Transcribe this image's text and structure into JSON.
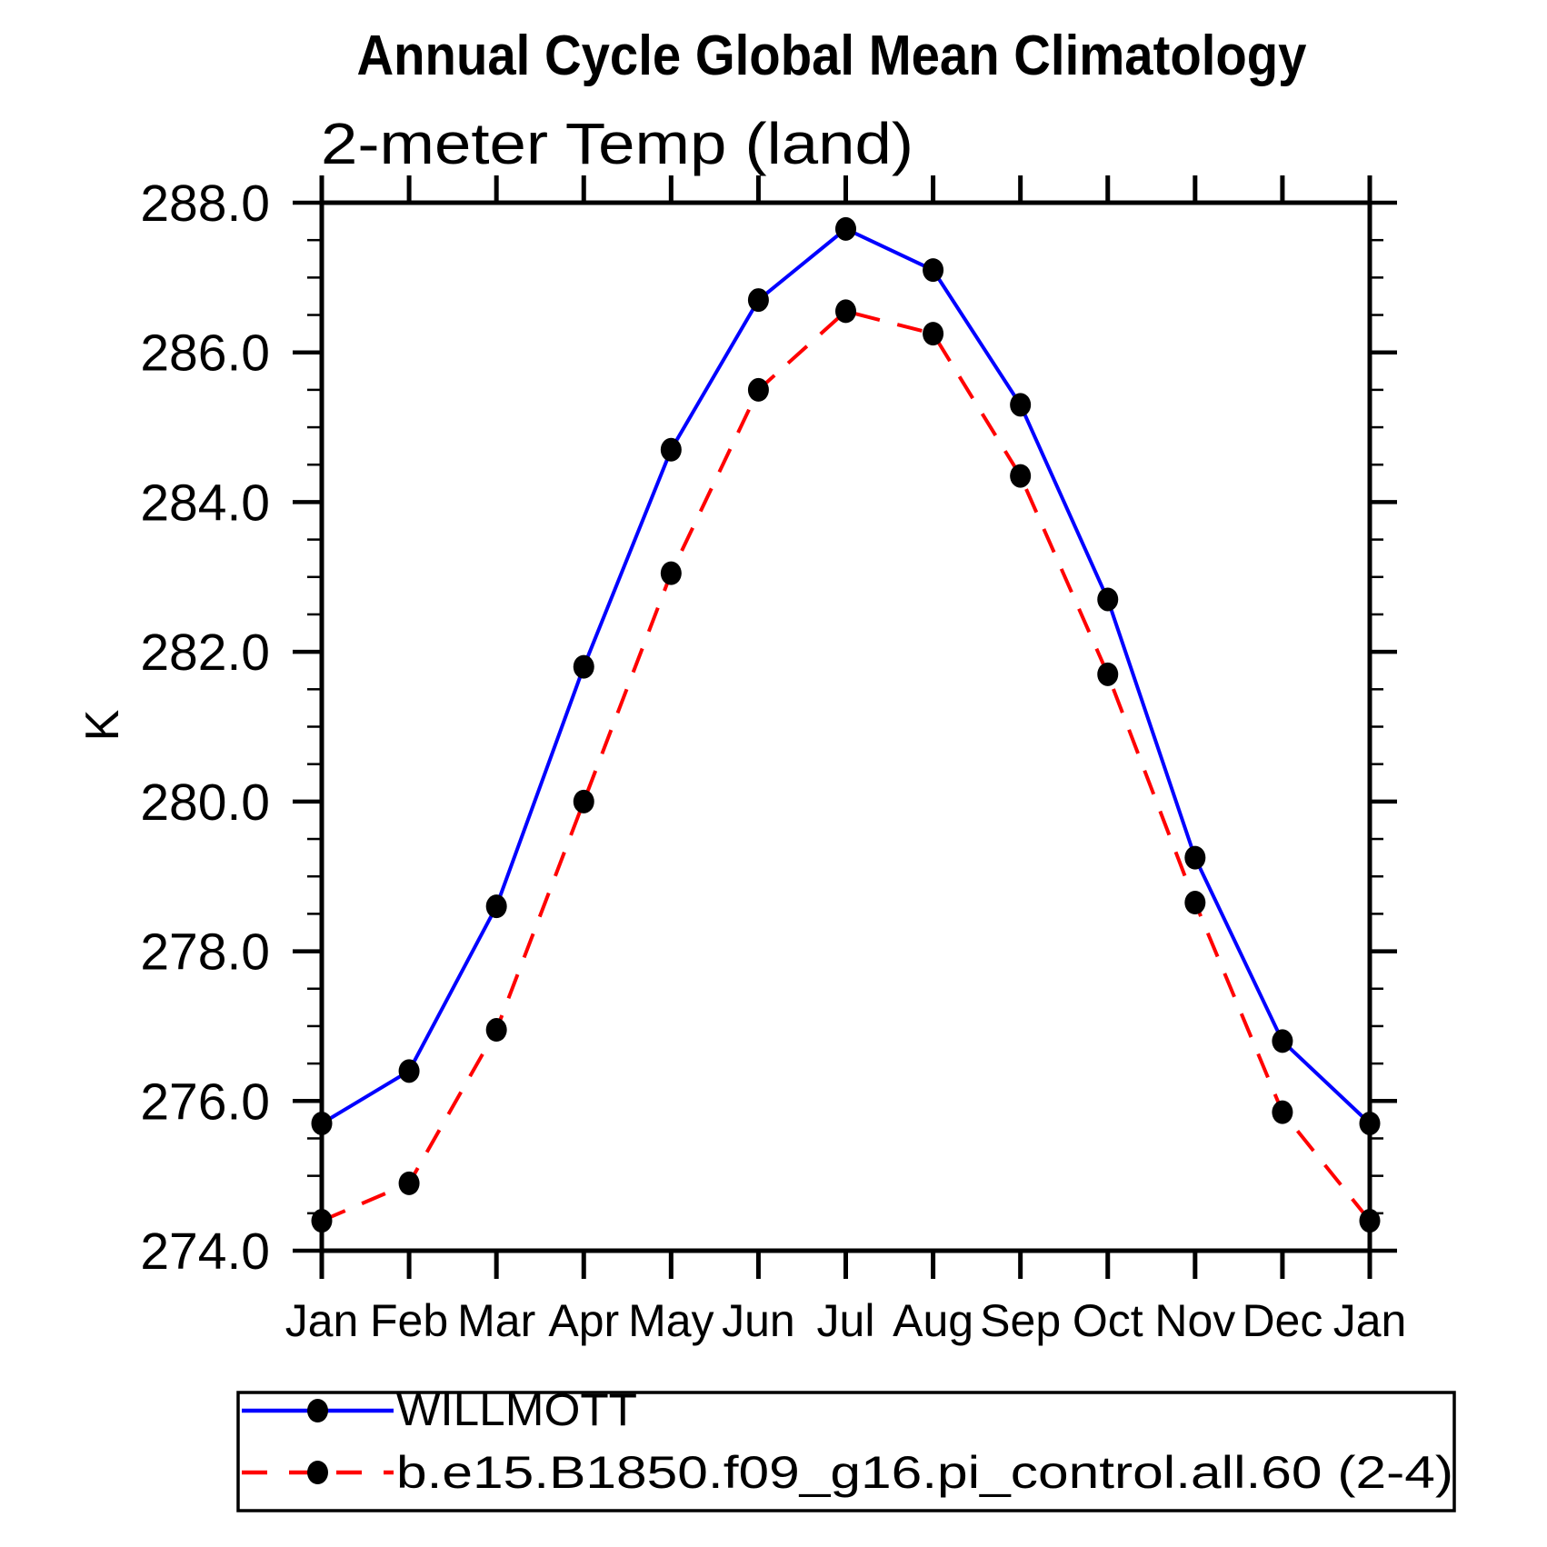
{
  "title": "Annual Cycle Global Mean Climatology",
  "subtitle": "2-meter Temp (land)",
  "y_axis": {
    "label": "K",
    "tick_labels": [
      "288.0",
      "286.0",
      "284.0",
      "282.0",
      "280.0",
      "278.0",
      "276.0",
      "274.0"
    ]
  },
  "x_axis": {
    "tick_labels": [
      "Jan",
      "Feb",
      "Mar",
      "Apr",
      "May",
      "Jun",
      "Jul",
      "Aug",
      "Sep",
      "Oct",
      "Nov",
      "Dec",
      "Jan"
    ]
  },
  "colors": {
    "willmott_line": "#0000ff",
    "model_line": "#ff0000",
    "marker": "#000000",
    "axis": "#000000",
    "background": "#ffffff"
  },
  "chart_data": {
    "type": "line",
    "title": "Annual Cycle Global Mean Climatology",
    "subtitle": "2-meter Temp (land)",
    "xlabel": "",
    "ylabel": "K",
    "categories": [
      "Jan",
      "Feb",
      "Mar",
      "Apr",
      "May",
      "Jun",
      "Jul",
      "Aug",
      "Sep",
      "Oct",
      "Nov",
      "Dec",
      "Jan"
    ],
    "ylim": [
      274.0,
      288.0
    ],
    "ytick_major": 2.0,
    "ytick_minor": 0.5,
    "grid": false,
    "legend_position": "bottom-left-box",
    "series": [
      {
        "name": "WILLMOTT",
        "color": "#0000ff",
        "line_style": "solid",
        "marker": "filled-circle",
        "marker_color": "#000000",
        "values": [
          275.7,
          276.4,
          278.6,
          281.8,
          284.7,
          286.7,
          287.65,
          287.1,
          285.3,
          282.7,
          279.25,
          276.8,
          275.7
        ]
      },
      {
        "name": "b.e15.B1850.f09_g16.pi_control.all.60 (2-4)",
        "color": "#ff0000",
        "line_style": "dashed",
        "marker": "filled-circle",
        "marker_color": "#000000",
        "values": [
          274.4,
          274.9,
          276.95,
          280.0,
          283.05,
          285.5,
          286.55,
          286.25,
          284.35,
          281.7,
          278.65,
          275.85,
          274.4
        ]
      }
    ]
  }
}
